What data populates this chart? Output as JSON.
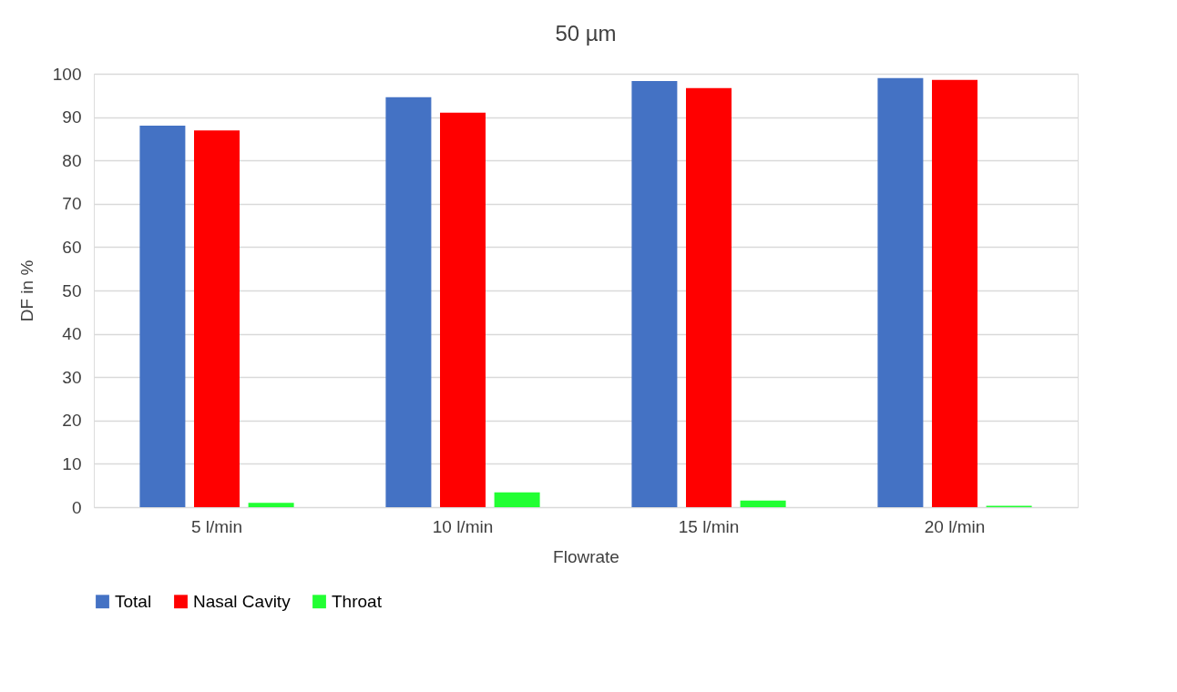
{
  "chart_data": {
    "type": "bar",
    "title": "50 µm",
    "xlabel": "Flowrate",
    "ylabel": "DF in %",
    "categories": [
      "5 l/min",
      "10 l/min",
      "15 l/min",
      "20 l/min"
    ],
    "series": [
      {
        "name": "Total",
        "color": "#4472c4",
        "values": [
          88.0,
          94.6,
          98.3,
          99.0
        ]
      },
      {
        "name": "Nasal Cavity",
        "color": "#ff0000",
        "values": [
          86.9,
          91.0,
          96.7,
          98.6
        ]
      },
      {
        "name": "Throat",
        "color": "#22ff33",
        "values": [
          1.0,
          3.4,
          1.5,
          0.3
        ]
      }
    ],
    "ylim": [
      0,
      100
    ],
    "yticks": [
      0,
      10,
      20,
      30,
      40,
      50,
      60,
      70,
      80,
      90,
      100
    ],
    "grid": "y",
    "legend": "bottom"
  }
}
